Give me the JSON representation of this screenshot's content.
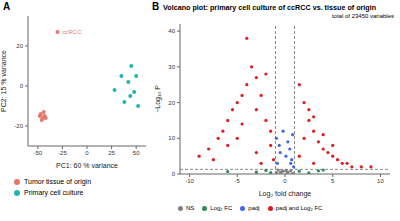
{
  "chart_data": [
    {
      "panel_label": "A",
      "type": "scatter",
      "x_label": "PC1: 60 % variance",
      "y_label": "PC2: 15 % variance",
      "xlim": [
        -60,
        60
      ],
      "xticks": [
        -50,
        -25,
        0,
        25,
        50
      ],
      "ylim": [
        -30,
        35
      ],
      "yticks": [
        -20,
        0,
        20
      ],
      "legend": "bottom",
      "series": [
        {
          "name": "Tumor tissue of origin",
          "color": "#e8766b",
          "x": [
            -47,
            -45,
            -44,
            -46,
            -43,
            -42,
            -48,
            -30
          ],
          "y": [
            -14,
            -16,
            -13,
            -17,
            -15,
            -16,
            -15,
            27
          ]
        },
        {
          "name": "Primary cell culture",
          "color": "#1fb5b5",
          "x": [
            28,
            35,
            38,
            42,
            45,
            48,
            50,
            52,
            44
          ],
          "y": [
            -2,
            5,
            -8,
            2,
            10,
            -3,
            5,
            -10,
            -5
          ]
        }
      ],
      "annotations": [
        {
          "text": "ccRCC",
          "x": -30,
          "y": 27
        }
      ]
    },
    {
      "panel_label": "B",
      "type": "scatter",
      "title": "Volcano plot: primary cell culture of ccRCC vs. tissue of origin",
      "subtitle": "total of 23450 variables",
      "x_label": "Log₂ fold change",
      "y_label": "−Log₁₀ P",
      "xlim": [
        -11,
        11
      ],
      "xticks": [
        -10,
        -5,
        0,
        5,
        10
      ],
      "ylim": [
        0,
        42
      ],
      "yticks": [
        0,
        10,
        20,
        30,
        40
      ],
      "legend": "bottom",
      "cutoff_lines": {
        "x": [
          -1,
          1
        ],
        "y": [
          1.3
        ]
      },
      "series": [
        {
          "name": "NS",
          "color": "#808080",
          "x": [
            -0.5,
            0.3,
            0.8,
            -0.2,
            0.1,
            -0.9,
            0.6,
            -0.4,
            0.2,
            -0.7
          ],
          "y": [
            0.3,
            0.5,
            0.2,
            0.8,
            1.0,
            0.4,
            0.9,
            0.6,
            0.1,
            1.1
          ]
        },
        {
          "name": "Log₂ FC",
          "color": "#2e8b57",
          "x": [
            -3,
            -2,
            1.5,
            2.5,
            -6,
            4,
            -1.5,
            3.5
          ],
          "y": [
            0.5,
            1.0,
            0.8,
            0.3,
            0.7,
            1.1,
            0.4,
            0.9
          ]
        },
        {
          "name": "padj",
          "color": "#4169e1",
          "x": [
            -0.8,
            -0.5,
            0.3,
            0.7,
            -0.2,
            0.9,
            0.5,
            -0.9,
            0.1,
            -0.6,
            0.6,
            0.8
          ],
          "y": [
            3,
            6,
            9,
            4,
            12,
            2,
            7,
            10,
            5,
            8,
            3,
            11
          ]
        },
        {
          "name": "padj and Log₂ FC",
          "color": "#e31a1c",
          "x": [
            -9,
            -8,
            -7.5,
            -7,
            -6.5,
            -6,
            -5.5,
            -5,
            -4.5,
            -4,
            -4,
            -3.5,
            -3,
            -3,
            -2.5,
            -2,
            -2,
            -1.5,
            -1.5,
            -1.2,
            -5,
            -6,
            -3,
            -4.5,
            -2.5,
            1.5,
            2,
            2.5,
            3,
            3.5,
            4,
            4.5,
            5,
            5.5,
            6,
            6.5,
            7,
            8,
            9,
            2,
            3,
            1.5,
            4,
            2.5,
            5,
            3
          ],
          "y": [
            5,
            7,
            4,
            10,
            12,
            15,
            18,
            20,
            22,
            25,
            38,
            30,
            27,
            18,
            22,
            15,
            28,
            12,
            8,
            4,
            10,
            8,
            6,
            14,
            3,
            5,
            10,
            15,
            12,
            9,
            7,
            6,
            5,
            4,
            3,
            3,
            2,
            2,
            2,
            20,
            16,
            25,
            11,
            18,
            8,
            3
          ]
        }
      ]
    }
  ]
}
